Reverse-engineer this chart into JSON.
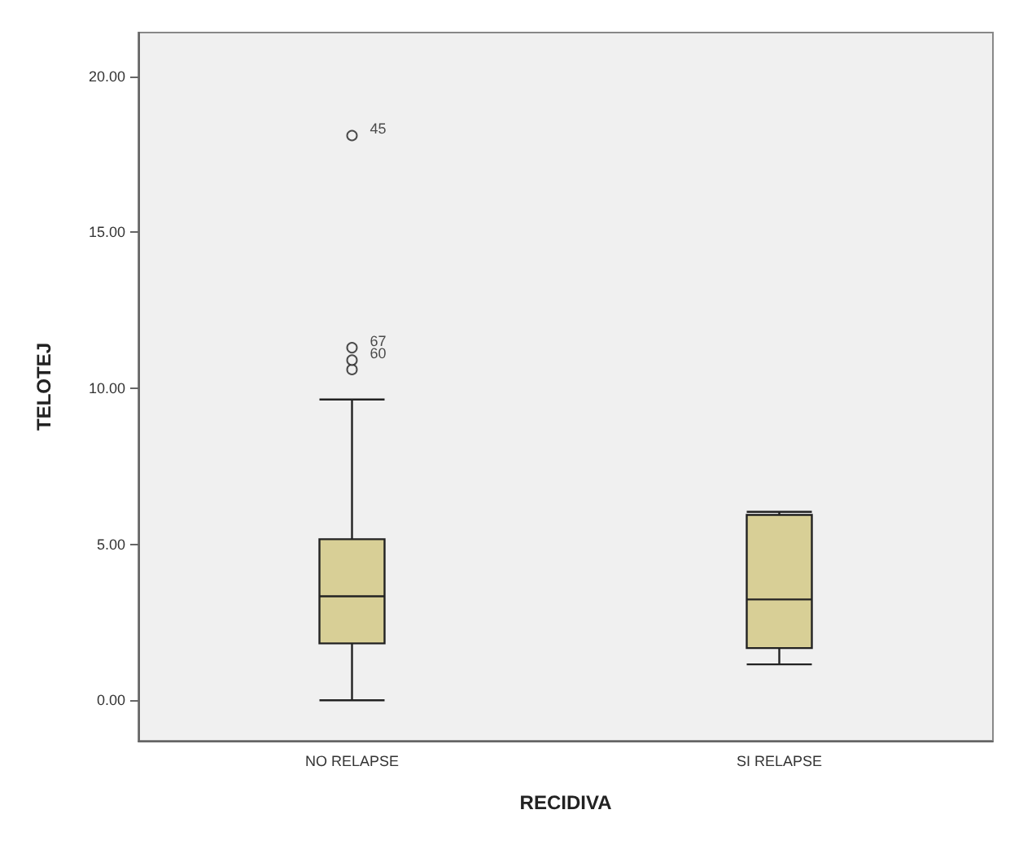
{
  "chart_data": {
    "type": "box",
    "xlabel": "RECIDIVA",
    "ylabel": "TELOTEJ",
    "categories": [
      "NO RELAPSE",
      "SI RELAPSE"
    ],
    "series": [
      {
        "color": "#d8cf96",
        "boxes": [
          {
            "low": 0.0,
            "q1": 1.82,
            "median": 3.33,
            "q3": 5.16,
            "high": 9.64,
            "outliers": [
              10.6,
              10.9,
              11.3,
              18.1
            ]
          },
          {
            "low": 1.15,
            "q1": 1.67,
            "median": 3.23,
            "q3": 5.94,
            "high": 6.04
          }
        ]
      }
    ],
    "ylim": [
      -1.3,
      21.4
    ],
    "yticks": [
      {
        "value": 0,
        "label": "0.00"
      },
      {
        "value": 5,
        "label": "5.00"
      },
      {
        "value": 10,
        "label": "10.00"
      },
      {
        "value": 15,
        "label": "15.00"
      },
      {
        "value": 20,
        "label": "20.00"
      }
    ],
    "annotations": [
      "45",
      "67",
      "60"
    ],
    "grid": false
  }
}
